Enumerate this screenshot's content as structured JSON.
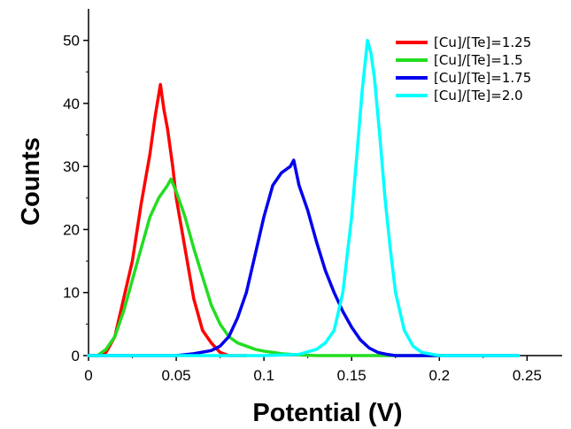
{
  "chart_data": {
    "type": "line",
    "xlabel": "Potential (V)",
    "ylabel": "Counts",
    "xlim": [
      0,
      0.27
    ],
    "ylim": [
      0,
      55
    ],
    "x_ticks": [
      "0",
      "0.05",
      "0.1",
      "0.15",
      "0.2",
      "0.25"
    ],
    "x_tick_values": [
      0,
      0.05,
      0.1,
      0.15,
      0.2,
      0.25
    ],
    "y_ticks": [
      "0",
      "10",
      "20",
      "30",
      "40",
      "50"
    ],
    "y_tick_values": [
      0,
      10,
      20,
      30,
      40,
      50
    ],
    "grid": false,
    "legend_position": "top-right",
    "series": [
      {
        "name": "[Cu]/[Te]=1.25",
        "color": "#ff0000",
        "x": [
          0.0,
          0.005,
          0.01,
          0.015,
          0.02,
          0.025,
          0.03,
          0.035,
          0.038,
          0.041,
          0.043,
          0.045,
          0.048,
          0.05,
          0.055,
          0.06,
          0.065,
          0.07,
          0.075,
          0.08,
          0.085,
          0.09
        ],
        "y": [
          0,
          0,
          0.5,
          3,
          9,
          15,
          24,
          32,
          38,
          43,
          39,
          36,
          30,
          25,
          17,
          9,
          4,
          2,
          0.5,
          0,
          0,
          0
        ]
      },
      {
        "name": "[Cu]/[Te]=1.5",
        "color": "#22dd22",
        "x": [
          0.0,
          0.005,
          0.01,
          0.015,
          0.02,
          0.025,
          0.03,
          0.035,
          0.04,
          0.045,
          0.047,
          0.05,
          0.055,
          0.06,
          0.065,
          0.07,
          0.075,
          0.08,
          0.085,
          0.09,
          0.095,
          0.1,
          0.105,
          0.11,
          0.115,
          0.12,
          0.13,
          0.14,
          0.15,
          0.16,
          0.17,
          0.18,
          0.19,
          0.2
        ],
        "y": [
          0,
          0,
          1,
          3,
          7,
          12,
          17,
          22,
          25,
          27,
          28,
          26,
          22,
          17,
          12.5,
          8,
          5,
          3,
          2,
          1.5,
          1,
          0.7,
          0.5,
          0.3,
          0.2,
          0.1,
          0,
          0,
          0,
          0,
          0,
          0,
          0,
          0
        ]
      },
      {
        "name": "[Cu]/[Te]=1.75",
        "color": "#0000ee",
        "x": [
          0.0,
          0.02,
          0.04,
          0.05,
          0.06,
          0.07,
          0.075,
          0.08,
          0.085,
          0.09,
          0.095,
          0.1,
          0.105,
          0.11,
          0.115,
          0.117,
          0.12,
          0.125,
          0.13,
          0.135,
          0.14,
          0.145,
          0.15,
          0.155,
          0.16,
          0.165,
          0.17,
          0.175,
          0.18,
          0.2,
          0.245
        ],
        "y": [
          0,
          0,
          0,
          0,
          0.3,
          0.8,
          1.5,
          3,
          6,
          10,
          16,
          22,
          27,
          29,
          30,
          31,
          27,
          23,
          18,
          13.5,
          10,
          7,
          4.5,
          2.5,
          1.2,
          0.5,
          0.2,
          0,
          0,
          0,
          0
        ]
      },
      {
        "name": "[Cu]/[Te]=2.0",
        "color": "#00ffff",
        "x": [
          0.0,
          0.05,
          0.1,
          0.12,
          0.13,
          0.135,
          0.14,
          0.145,
          0.15,
          0.153,
          0.156,
          0.159,
          0.161,
          0.163,
          0.166,
          0.169,
          0.172,
          0.175,
          0.18,
          0.185,
          0.19,
          0.2,
          0.22,
          0.245
        ],
        "y": [
          0,
          0,
          0,
          0.2,
          1,
          2,
          4,
          10,
          22,
          32,
          42,
          50,
          48,
          44,
          35,
          25,
          17,
          10,
          4,
          1.5,
          0.5,
          0,
          0,
          0
        ]
      }
    ]
  }
}
